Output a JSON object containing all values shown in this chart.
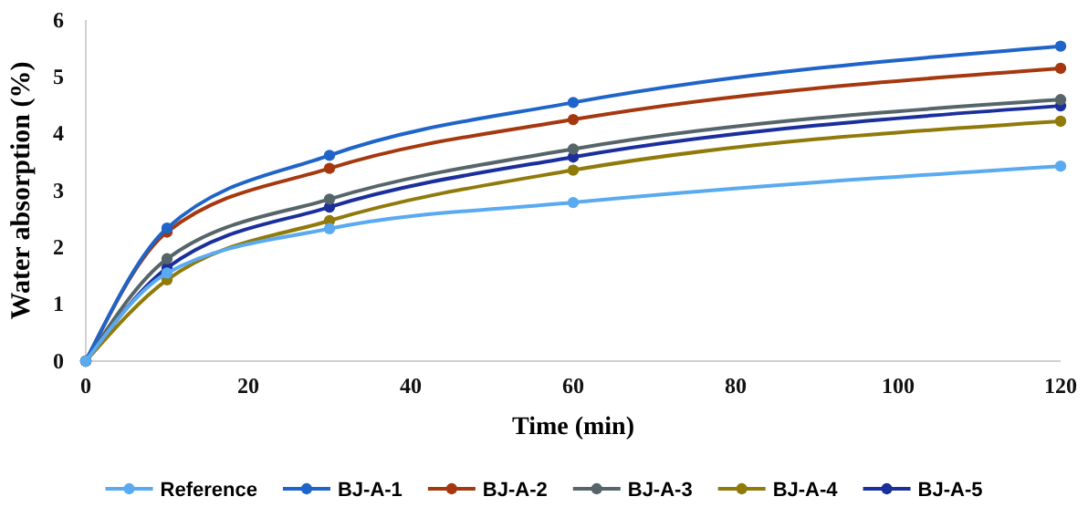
{
  "chart_data": {
    "type": "line",
    "xlabel": "Time (min)",
    "ylabel": "Water absorption (%)",
    "x": [
      0,
      10,
      30,
      60,
      120
    ],
    "xlim": [
      0,
      120
    ],
    "xticks": [
      0,
      20,
      40,
      60,
      80,
      100,
      120
    ],
    "ylim": [
      0,
      6
    ],
    "yticks": [
      0,
      1,
      2,
      3,
      4,
      5,
      6
    ],
    "grid": false,
    "legend": "bottom",
    "marker": "circle",
    "line_style": "solid",
    "series": [
      {
        "name": "Reference",
        "color": "#5aaaf0",
        "values": [
          0,
          1.55,
          2.33,
          2.79,
          3.43
        ]
      },
      {
        "name": "BJ-A-1",
        "color": "#1f64c8",
        "values": [
          0,
          2.34,
          3.62,
          4.55,
          5.54
        ]
      },
      {
        "name": "BJ-A-2",
        "color": "#a5380f",
        "values": [
          0,
          2.27,
          3.39,
          4.25,
          5.15
        ]
      },
      {
        "name": "BJ-A-3",
        "color": "#56656a",
        "values": [
          0,
          1.8,
          2.85,
          3.73,
          4.6
        ]
      },
      {
        "name": "BJ-A-4",
        "color": "#8f7a0a",
        "values": [
          0,
          1.43,
          2.47,
          3.36,
          4.22
        ]
      },
      {
        "name": "BJ-A-5",
        "color": "#1a2f9c",
        "values": [
          0,
          1.64,
          2.71,
          3.59,
          4.49
        ]
      }
    ]
  }
}
